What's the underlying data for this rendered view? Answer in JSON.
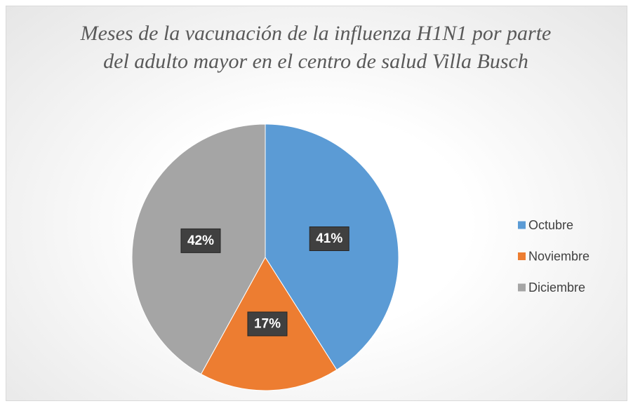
{
  "chart_data": {
    "type": "pie",
    "title": "Meses de la vacunación de la influenza H1N1 por parte del adulto mayor en el centro de salud Villa Busch",
    "categories": [
      "Octubre",
      "Noviembre",
      "Diciembre"
    ],
    "values": [
      41,
      17,
      42
    ],
    "value_labels": [
      "41%",
      "17%",
      "42%"
    ],
    "colors": [
      "#5b9bd5",
      "#ed7d31",
      "#a5a5a5"
    ],
    "legend": "right"
  }
}
